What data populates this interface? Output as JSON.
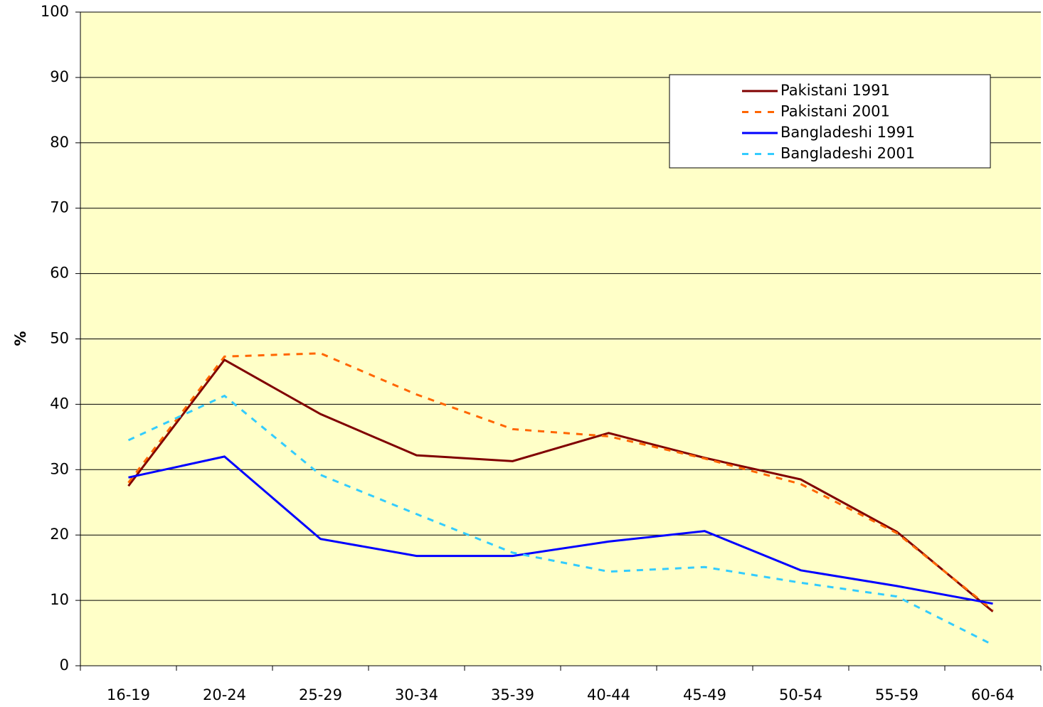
{
  "chart_data": {
    "type": "line",
    "y_label": "%",
    "categories": [
      "16-19",
      "20-24",
      "25-29",
      "30-34",
      "35-39",
      "40-44",
      "45-49",
      "50-54",
      "55-59",
      "60-64"
    ],
    "series": [
      {
        "name": "Pakistani 1991",
        "color": "#800000",
        "dashed": false,
        "values": [
          27.5,
          46.8,
          38.5,
          32.2,
          31.3,
          35.6,
          31.8,
          28.5,
          20.5,
          8.3
        ]
      },
      {
        "name": "Pakistani 2001",
        "color": "#ff6600",
        "dashed": true,
        "values": [
          28,
          47.3,
          47.8,
          41.5,
          36.2,
          35.1,
          31.7,
          27.8,
          20.3,
          8.5
        ]
      },
      {
        "name": "Bangladeshi 1991",
        "color": "#0000ff",
        "dashed": false,
        "values": [
          28.8,
          32,
          19.4,
          16.8,
          16.8,
          19,
          20.6,
          14.6,
          12.2,
          9.5
        ]
      },
      {
        "name": "Bangladeshi 2001",
        "color": "#33ccff",
        "dashed": true,
        "values": [
          34.5,
          41.3,
          29.2,
          23.2,
          17.3,
          14.4,
          15.1,
          12.7,
          10.6,
          3.2
        ]
      }
    ],
    "ylim": [
      0,
      100
    ],
    "yticks": [
      0,
      10,
      20,
      30,
      40,
      50,
      60,
      70,
      80,
      90,
      100
    ],
    "grid": true,
    "legend": "upper right"
  }
}
